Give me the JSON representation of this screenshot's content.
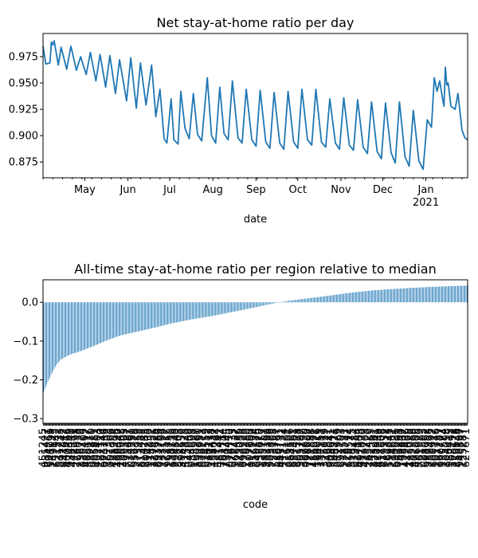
{
  "chart_data": [
    {
      "type": "line",
      "title": "Net stay-at-home ratio per day",
      "xlabel": "date",
      "ylabel": "",
      "series_color": "#1f77b4",
      "x_start": "2020-04-01",
      "x_end": "2021-01-31",
      "ylim": [
        0.86,
        0.997
      ],
      "yticks": [
        0.875,
        0.9,
        0.925,
        0.95,
        0.975
      ],
      "ytick_labels": [
        "0.875",
        "0.900",
        "0.925",
        "0.950",
        "0.975"
      ],
      "xticks": [
        {
          "date": "2020-05-01",
          "label": "May"
        },
        {
          "date": "2020-06-01",
          "label": "Jun"
        },
        {
          "date": "2020-07-01",
          "label": "Jul"
        },
        {
          "date": "2020-08-01",
          "label": "Aug"
        },
        {
          "date": "2020-09-01",
          "label": "Sep"
        },
        {
          "date": "2020-10-01",
          "label": "Oct"
        },
        {
          "date": "2020-11-01",
          "label": "Nov"
        },
        {
          "date": "2020-12-01",
          "label": "Dec"
        },
        {
          "date": "2021-01-01",
          "label": "Jan",
          "sublabel": "2021"
        }
      ],
      "weekly_extremes": [
        {
          "date": "2020-04-01",
          "y": 0.985
        },
        {
          "date": "2020-04-03",
          "y": 0.968
        },
        {
          "date": "2020-04-06",
          "y": 0.969
        },
        {
          "date": "2020-04-07",
          "y": 0.989
        },
        {
          "date": "2020-04-08",
          "y": 0.986
        },
        {
          "date": "2020-04-09",
          "y": 0.99
        },
        {
          "date": "2020-04-12",
          "y": 0.967
        },
        {
          "date": "2020-04-14",
          "y": 0.984
        },
        {
          "date": "2020-04-18",
          "y": 0.963
        },
        {
          "date": "2020-04-21",
          "y": 0.985
        },
        {
          "date": "2020-04-25",
          "y": 0.962
        },
        {
          "date": "2020-04-28",
          "y": 0.975
        },
        {
          "date": "2020-05-02",
          "y": 0.958
        },
        {
          "date": "2020-05-05",
          "y": 0.979
        },
        {
          "date": "2020-05-09",
          "y": 0.952
        },
        {
          "date": "2020-05-12",
          "y": 0.977
        },
        {
          "date": "2020-05-16",
          "y": 0.946
        },
        {
          "date": "2020-05-19",
          "y": 0.976
        },
        {
          "date": "2020-05-23",
          "y": 0.94
        },
        {
          "date": "2020-05-26",
          "y": 0.972
        },
        {
          "date": "2020-05-31",
          "y": 0.933
        },
        {
          "date": "2020-06-03",
          "y": 0.974
        },
        {
          "date": "2020-06-07",
          "y": 0.926
        },
        {
          "date": "2020-06-10",
          "y": 0.969
        },
        {
          "date": "2020-06-14",
          "y": 0.929
        },
        {
          "date": "2020-06-18",
          "y": 0.967
        },
        {
          "date": "2020-06-21",
          "y": 0.918
        },
        {
          "date": "2020-06-24",
          "y": 0.944
        },
        {
          "date": "2020-06-27",
          "y": 0.897
        },
        {
          "date": "2020-06-29",
          "y": 0.893
        },
        {
          "date": "2020-07-02",
          "y": 0.935
        },
        {
          "date": "2020-07-04",
          "y": 0.896
        },
        {
          "date": "2020-07-07",
          "y": 0.892
        },
        {
          "date": "2020-07-09",
          "y": 0.942
        },
        {
          "date": "2020-07-12",
          "y": 0.907
        },
        {
          "date": "2020-07-15",
          "y": 0.897
        },
        {
          "date": "2020-07-18",
          "y": 0.94
        },
        {
          "date": "2020-07-21",
          "y": 0.901
        },
        {
          "date": "2020-07-24",
          "y": 0.895
        },
        {
          "date": "2020-07-28",
          "y": 0.955
        },
        {
          "date": "2020-07-31",
          "y": 0.9
        },
        {
          "date": "2020-08-03",
          "y": 0.893
        },
        {
          "date": "2020-08-06",
          "y": 0.946
        },
        {
          "date": "2020-08-09",
          "y": 0.902
        },
        {
          "date": "2020-08-12",
          "y": 0.896
        },
        {
          "date": "2020-08-15",
          "y": 0.952
        },
        {
          "date": "2020-08-19",
          "y": 0.898
        },
        {
          "date": "2020-08-22",
          "y": 0.893
        },
        {
          "date": "2020-08-25",
          "y": 0.944
        },
        {
          "date": "2020-08-29",
          "y": 0.896
        },
        {
          "date": "2020-09-01",
          "y": 0.89
        },
        {
          "date": "2020-09-04",
          "y": 0.943
        },
        {
          "date": "2020-09-08",
          "y": 0.894
        },
        {
          "date": "2020-09-11",
          "y": 0.888
        },
        {
          "date": "2020-09-14",
          "y": 0.941
        },
        {
          "date": "2020-09-18",
          "y": 0.893
        },
        {
          "date": "2020-09-21",
          "y": 0.887
        },
        {
          "date": "2020-09-24",
          "y": 0.942
        },
        {
          "date": "2020-09-28",
          "y": 0.894
        },
        {
          "date": "2020-10-01",
          "y": 0.888
        },
        {
          "date": "2020-10-04",
          "y": 0.944
        },
        {
          "date": "2020-10-08",
          "y": 0.896
        },
        {
          "date": "2020-10-11",
          "y": 0.891
        },
        {
          "date": "2020-10-14",
          "y": 0.944
        },
        {
          "date": "2020-10-18",
          "y": 0.894
        },
        {
          "date": "2020-10-21",
          "y": 0.889
        },
        {
          "date": "2020-10-24",
          "y": 0.935
        },
        {
          "date": "2020-10-28",
          "y": 0.893
        },
        {
          "date": "2020-10-31",
          "y": 0.887
        },
        {
          "date": "2020-11-03",
          "y": 0.936
        },
        {
          "date": "2020-11-07",
          "y": 0.891
        },
        {
          "date": "2020-11-10",
          "y": 0.886
        },
        {
          "date": "2020-11-13",
          "y": 0.934
        },
        {
          "date": "2020-11-17",
          "y": 0.889
        },
        {
          "date": "2020-11-20",
          "y": 0.883
        },
        {
          "date": "2020-11-23",
          "y": 0.932
        },
        {
          "date": "2020-11-27",
          "y": 0.885
        },
        {
          "date": "2020-11-30",
          "y": 0.878
        },
        {
          "date": "2020-12-03",
          "y": 0.931
        },
        {
          "date": "2020-12-07",
          "y": 0.884
        },
        {
          "date": "2020-12-10",
          "y": 0.874
        },
        {
          "date": "2020-12-13",
          "y": 0.932
        },
        {
          "date": "2020-12-17",
          "y": 0.88
        },
        {
          "date": "2020-12-20",
          "y": 0.871
        },
        {
          "date": "2020-12-23",
          "y": 0.924
        },
        {
          "date": "2020-12-27",
          "y": 0.876
        },
        {
          "date": "2020-12-30",
          "y": 0.868
        },
        {
          "date": "2021-01-02",
          "y": 0.915
        },
        {
          "date": "2021-01-05",
          "y": 0.908
        },
        {
          "date": "2021-01-07",
          "y": 0.955
        },
        {
          "date": "2021-01-09",
          "y": 0.942
        },
        {
          "date": "2021-01-11",
          "y": 0.952
        },
        {
          "date": "2021-01-13",
          "y": 0.935
        },
        {
          "date": "2021-01-14",
          "y": 0.928
        },
        {
          "date": "2021-01-15",
          "y": 0.965
        },
        {
          "date": "2021-01-16",
          "y": 0.948
        },
        {
          "date": "2021-01-17",
          "y": 0.95
        },
        {
          "date": "2021-01-19",
          "y": 0.928
        },
        {
          "date": "2021-01-22",
          "y": 0.925
        },
        {
          "date": "2021-01-24",
          "y": 0.94
        },
        {
          "date": "2021-01-27",
          "y": 0.905
        },
        {
          "date": "2021-01-29",
          "y": 0.898
        },
        {
          "date": "2021-01-31",
          "y": 0.896
        }
      ]
    },
    {
      "type": "bar",
      "title": "All-time stay-at-home ratio per region relative to median",
      "xlabel": "code",
      "ylabel": "",
      "bar_color": "#1f77b4",
      "bar_count": 400,
      "ylim": [
        -0.312,
        0.058
      ],
      "yticks": [
        -0.3,
        -0.2,
        -0.1,
        0.0
      ],
      "ytick_labels": [
        "−0.3",
        "−0.2",
        "−0.1",
        "0.0"
      ],
      "sorted_value_profile": [
        {
          "fraction": 0.0,
          "value": -0.232
        },
        {
          "fraction": 0.01,
          "value": -0.205
        },
        {
          "fraction": 0.02,
          "value": -0.182
        },
        {
          "fraction": 0.03,
          "value": -0.162
        },
        {
          "fraction": 0.04,
          "value": -0.148
        },
        {
          "fraction": 0.06,
          "value": -0.136
        },
        {
          "fraction": 0.09,
          "value": -0.125
        },
        {
          "fraction": 0.12,
          "value": -0.112
        },
        {
          "fraction": 0.15,
          "value": -0.098
        },
        {
          "fraction": 0.18,
          "value": -0.086
        },
        {
          "fraction": 0.22,
          "value": -0.076
        },
        {
          "fraction": 0.26,
          "value": -0.066
        },
        {
          "fraction": 0.3,
          "value": -0.055
        },
        {
          "fraction": 0.35,
          "value": -0.044
        },
        {
          "fraction": 0.4,
          "value": -0.035
        },
        {
          "fraction": 0.45,
          "value": -0.024
        },
        {
          "fraction": 0.5,
          "value": -0.013
        },
        {
          "fraction": 0.555,
          "value": 0.0
        },
        {
          "fraction": 0.6,
          "value": 0.007
        },
        {
          "fraction": 0.66,
          "value": 0.015
        },
        {
          "fraction": 0.72,
          "value": 0.024
        },
        {
          "fraction": 0.78,
          "value": 0.031
        },
        {
          "fraction": 0.85,
          "value": 0.036
        },
        {
          "fraction": 0.92,
          "value": 0.04
        },
        {
          "fraction": 1.0,
          "value": 0.043
        }
      ],
      "code_ticks_visible": "dense, overlapping and illegible"
    }
  ]
}
